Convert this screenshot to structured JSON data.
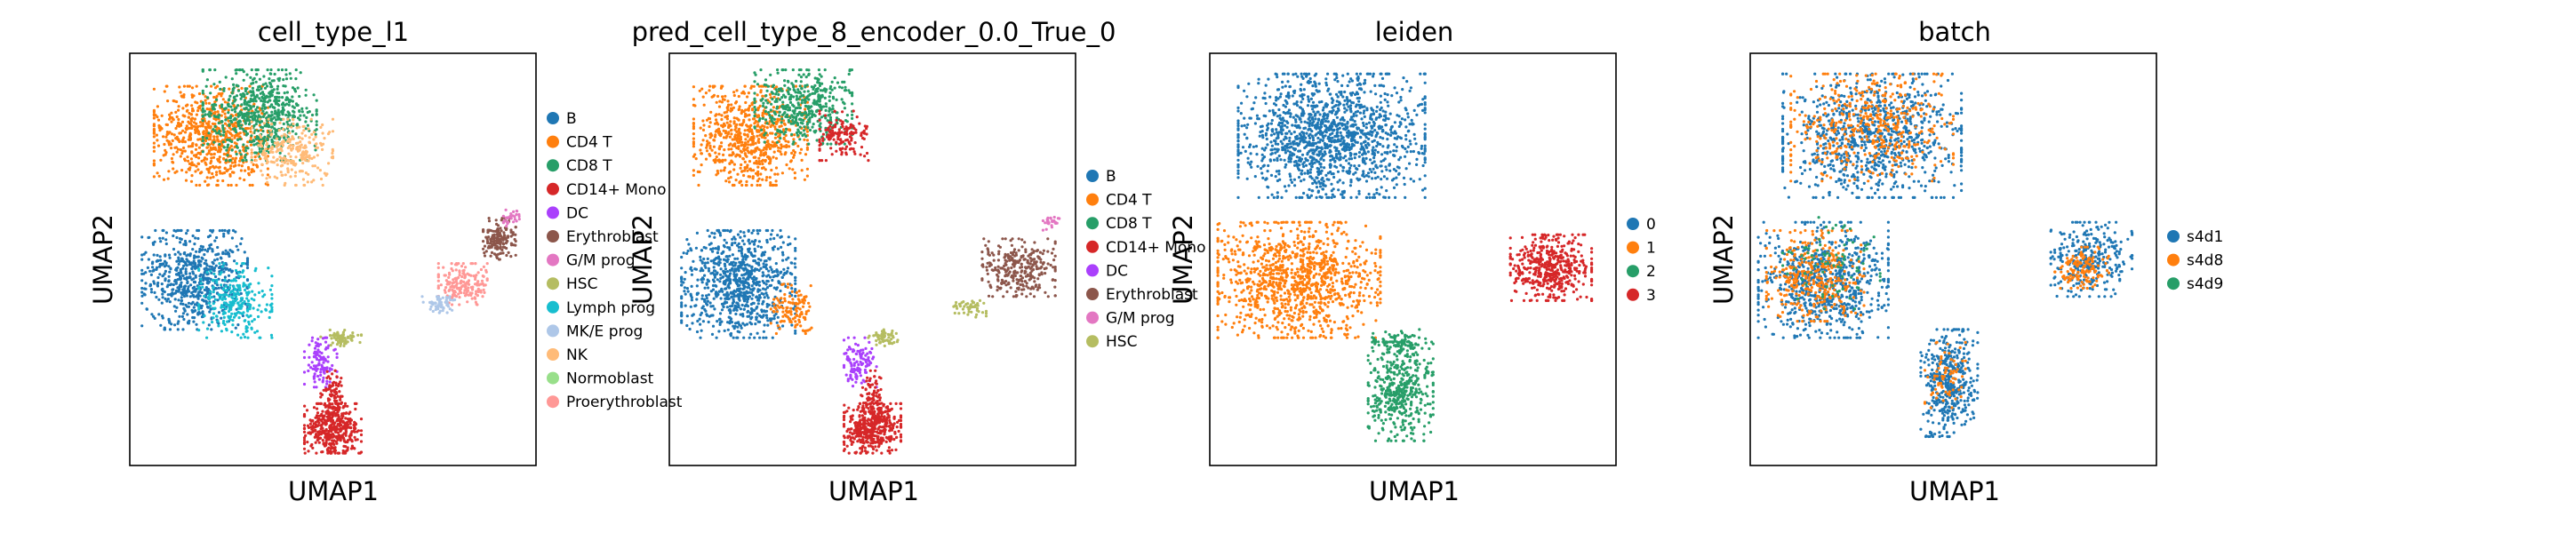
{
  "chart_data": [
    {
      "type": "scatter",
      "title": "cell_type_l1",
      "xlabel": "UMAP1",
      "ylabel": "UMAP2",
      "legend_placement": "right",
      "grid": false,
      "legend": [
        {
          "label": "B",
          "color": "#1f77b4"
        },
        {
          "label": "CD4 T",
          "color": "#ff7f0e"
        },
        {
          "label": "CD8 T",
          "color": "#279e68"
        },
        {
          "label": "CD14+ Mono",
          "color": "#d62728"
        },
        {
          "label": "DC",
          "color": "#aa40fc"
        },
        {
          "label": "Erythroblast",
          "color": "#8c564b"
        },
        {
          "label": "G/M prog",
          "color": "#e377c2"
        },
        {
          "label": "HSC",
          "color": "#b5bd61"
        },
        {
          "label": "Lymph prog",
          "color": "#17becf"
        },
        {
          "label": "MK/E prog",
          "color": "#aec7e8"
        },
        {
          "label": "NK",
          "color": "#ffbb78"
        },
        {
          "label": "Normoblast",
          "color": "#98df8a"
        },
        {
          "label": "Proerythroblast",
          "color": "#ff9896"
        }
      ],
      "clusters": [
        {
          "cat": 1,
          "cx": 0.2,
          "cy": 0.2,
          "rx": 0.14,
          "ry": 0.12,
          "n": 700
        },
        {
          "cat": 2,
          "cx": 0.32,
          "cy": 0.15,
          "rx": 0.14,
          "ry": 0.11,
          "n": 650
        },
        {
          "cat": 10,
          "cx": 0.4,
          "cy": 0.24,
          "rx": 0.1,
          "ry": 0.08,
          "n": 260
        },
        {
          "cat": 0,
          "cx": 0.16,
          "cy": 0.55,
          "rx": 0.13,
          "ry": 0.12,
          "n": 650
        },
        {
          "cat": 8,
          "cx": 0.26,
          "cy": 0.6,
          "rx": 0.09,
          "ry": 0.09,
          "n": 260
        },
        {
          "cat": 4,
          "cx": 0.47,
          "cy": 0.75,
          "rx": 0.04,
          "ry": 0.06,
          "n": 110
        },
        {
          "cat": 7,
          "cx": 0.52,
          "cy": 0.69,
          "rx": 0.05,
          "ry": 0.02,
          "n": 70
        },
        {
          "cat": 3,
          "cx": 0.5,
          "cy": 0.91,
          "rx": 0.07,
          "ry": 0.06,
          "n": 420
        },
        {
          "cat": 3,
          "cx": 0.5,
          "cy": 0.83,
          "rx": 0.03,
          "ry": 0.06,
          "n": 90
        },
        {
          "cat": 12,
          "cx": 0.82,
          "cy": 0.56,
          "rx": 0.06,
          "ry": 0.05,
          "n": 180
        },
        {
          "cat": 9,
          "cx": 0.76,
          "cy": 0.61,
          "rx": 0.04,
          "ry": 0.02,
          "n": 60
        },
        {
          "cat": 5,
          "cx": 0.91,
          "cy": 0.45,
          "rx": 0.04,
          "ry": 0.05,
          "n": 160
        },
        {
          "cat": 6,
          "cx": 0.94,
          "cy": 0.4,
          "rx": 0.02,
          "ry": 0.02,
          "n": 30
        }
      ]
    },
    {
      "type": "scatter",
      "title": "pred_cell_type_8_encoder_0.0_True_0",
      "xlabel": "UMAP1",
      "ylabel": "UMAP2",
      "legend_placement": "right",
      "grid": false,
      "legend": [
        {
          "label": "B",
          "color": "#1f77b4"
        },
        {
          "label": "CD4 T",
          "color": "#ff7f0e"
        },
        {
          "label": "CD8 T",
          "color": "#279e68"
        },
        {
          "label": "CD14+ Mono",
          "color": "#d62728"
        },
        {
          "label": "DC",
          "color": "#aa40fc"
        },
        {
          "label": "Erythroblast",
          "color": "#8c564b"
        },
        {
          "label": "G/M prog",
          "color": "#e377c2"
        },
        {
          "label": "HSC",
          "color": "#b5bd61"
        }
      ],
      "clusters": [
        {
          "cat": 1,
          "cx": 0.2,
          "cy": 0.2,
          "rx": 0.14,
          "ry": 0.12,
          "n": 700
        },
        {
          "cat": 2,
          "cx": 0.33,
          "cy": 0.13,
          "rx": 0.12,
          "ry": 0.09,
          "n": 450
        },
        {
          "cat": 3,
          "cx": 0.43,
          "cy": 0.2,
          "rx": 0.06,
          "ry": 0.06,
          "n": 150
        },
        {
          "cat": 0,
          "cx": 0.17,
          "cy": 0.56,
          "rx": 0.14,
          "ry": 0.13,
          "n": 850
        },
        {
          "cat": 1,
          "cx": 0.3,
          "cy": 0.62,
          "rx": 0.05,
          "ry": 0.06,
          "n": 120
        },
        {
          "cat": 4,
          "cx": 0.47,
          "cy": 0.75,
          "rx": 0.04,
          "ry": 0.06,
          "n": 110
        },
        {
          "cat": 7,
          "cx": 0.53,
          "cy": 0.69,
          "rx": 0.04,
          "ry": 0.02,
          "n": 60
        },
        {
          "cat": 3,
          "cx": 0.5,
          "cy": 0.91,
          "rx": 0.07,
          "ry": 0.06,
          "n": 420
        },
        {
          "cat": 3,
          "cx": 0.5,
          "cy": 0.83,
          "rx": 0.03,
          "ry": 0.06,
          "n": 90
        },
        {
          "cat": 5,
          "cx": 0.86,
          "cy": 0.52,
          "rx": 0.09,
          "ry": 0.07,
          "n": 300
        },
        {
          "cat": 7,
          "cx": 0.74,
          "cy": 0.62,
          "rx": 0.04,
          "ry": 0.02,
          "n": 50
        },
        {
          "cat": 6,
          "cx": 0.94,
          "cy": 0.41,
          "rx": 0.02,
          "ry": 0.02,
          "n": 30
        }
      ]
    },
    {
      "type": "scatter",
      "title": "leiden",
      "xlabel": "UMAP1",
      "ylabel": "UMAP2",
      "legend_placement": "right",
      "grid": false,
      "legend": [
        {
          "label": "0",
          "color": "#1f77b4"
        },
        {
          "label": "1",
          "color": "#ff7f0e"
        },
        {
          "label": "2",
          "color": "#279e68"
        },
        {
          "label": "3",
          "color": "#d62728"
        }
      ],
      "clusters": [
        {
          "cat": 0,
          "cx": 0.3,
          "cy": 0.2,
          "rx": 0.23,
          "ry": 0.15,
          "n": 1400
        },
        {
          "cat": 1,
          "cx": 0.22,
          "cy": 0.55,
          "rx": 0.2,
          "ry": 0.14,
          "n": 1100
        },
        {
          "cat": 2,
          "cx": 0.47,
          "cy": 0.82,
          "rx": 0.08,
          "ry": 0.12,
          "n": 450
        },
        {
          "cat": 2,
          "cx": 0.47,
          "cy": 0.7,
          "rx": 0.07,
          "ry": 0.03,
          "n": 80
        },
        {
          "cat": 3,
          "cx": 0.84,
          "cy": 0.52,
          "rx": 0.1,
          "ry": 0.08,
          "n": 450
        }
      ]
    },
    {
      "type": "scatter",
      "title": "batch",
      "xlabel": "UMAP1",
      "ylabel": "UMAP2",
      "legend_placement": "right",
      "grid": false,
      "legend": [
        {
          "label": "s4d1",
          "color": "#1f77b4"
        },
        {
          "label": "s4d8",
          "color": "#ff7f0e"
        },
        {
          "label": "s4d9",
          "color": "#279e68"
        }
      ],
      "clusters": [
        {
          "cat": 0,
          "cx": 0.3,
          "cy": 0.2,
          "rx": 0.22,
          "ry": 0.15,
          "n": 900
        },
        {
          "cat": 1,
          "cx": 0.3,
          "cy": 0.18,
          "rx": 0.2,
          "ry": 0.13,
          "n": 450
        },
        {
          "cat": 0,
          "cx": 0.18,
          "cy": 0.55,
          "rx": 0.16,
          "ry": 0.14,
          "n": 750
        },
        {
          "cat": 1,
          "cx": 0.16,
          "cy": 0.54,
          "rx": 0.12,
          "ry": 0.11,
          "n": 350
        },
        {
          "cat": 2,
          "cx": 0.2,
          "cy": 0.5,
          "rx": 0.12,
          "ry": 0.12,
          "n": 80
        },
        {
          "cat": 0,
          "cx": 0.49,
          "cy": 0.8,
          "rx": 0.07,
          "ry": 0.13,
          "n": 420
        },
        {
          "cat": 1,
          "cx": 0.48,
          "cy": 0.78,
          "rx": 0.05,
          "ry": 0.08,
          "n": 70
        },
        {
          "cat": 0,
          "cx": 0.84,
          "cy": 0.5,
          "rx": 0.1,
          "ry": 0.09,
          "n": 300
        },
        {
          "cat": 1,
          "cx": 0.82,
          "cy": 0.52,
          "rx": 0.07,
          "ry": 0.05,
          "n": 130
        }
      ]
    }
  ]
}
